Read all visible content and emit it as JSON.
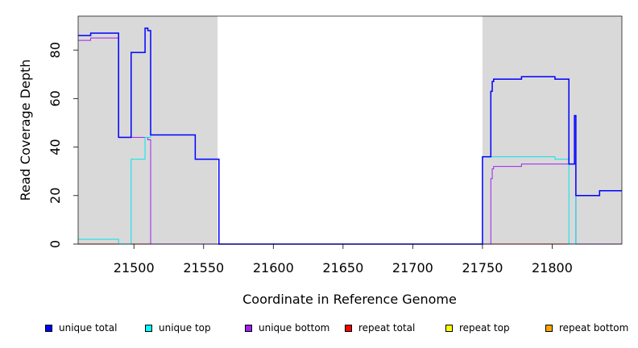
{
  "chart_data": {
    "type": "line",
    "title": "",
    "xlabel": "Coordinate in Reference Genome",
    "ylabel": "Read Coverage Depth",
    "xlim": [
      21460,
      21850
    ],
    "ylim": [
      0,
      94
    ],
    "xticks": [
      21500,
      21550,
      21600,
      21650,
      21700,
      21750,
      21800
    ],
    "yticks": [
      0,
      20,
      40,
      60,
      80
    ],
    "shaded_regions": [
      [
        21460,
        21560
      ],
      [
        21750,
        21850
      ]
    ],
    "shade_color": "#d9d9d9",
    "grid": false,
    "legend_position": "bottom",
    "series": [
      {
        "name": "unique total",
        "color": "#0000ff",
        "points": [
          [
            21460,
            86
          ],
          [
            21469,
            86
          ],
          [
            21469,
            87
          ],
          [
            21489,
            87
          ],
          [
            21489,
            44
          ],
          [
            21498,
            44
          ],
          [
            21498,
            79
          ],
          [
            21508,
            79
          ],
          [
            21508,
            89
          ],
          [
            21510,
            89
          ],
          [
            21510,
            88
          ],
          [
            21512,
            88
          ],
          [
            21512,
            45
          ],
          [
            21544,
            45
          ],
          [
            21544,
            35
          ],
          [
            21561,
            35
          ],
          [
            21561,
            0
          ],
          [
            21750,
            0
          ],
          [
            21750,
            36
          ],
          [
            21756,
            36
          ],
          [
            21756,
            63
          ],
          [
            21757,
            63
          ],
          [
            21757,
            67
          ],
          [
            21758,
            67
          ],
          [
            21758,
            68
          ],
          [
            21778,
            68
          ],
          [
            21778,
            69
          ],
          [
            21802,
            69
          ],
          [
            21802,
            68
          ],
          [
            21812,
            68
          ],
          [
            21812,
            33
          ],
          [
            21816,
            33
          ],
          [
            21816,
            53
          ],
          [
            21817,
            53
          ],
          [
            21817,
            20
          ],
          [
            21834,
            20
          ],
          [
            21834,
            22
          ],
          [
            21850,
            22
          ]
        ]
      },
      {
        "name": "unique top",
        "color": "#00e5ee",
        "points": [
          [
            21460,
            2
          ],
          [
            21489,
            2
          ],
          [
            21489,
            0
          ],
          [
            21498,
            0
          ],
          [
            21498,
            35
          ],
          [
            21508,
            35
          ],
          [
            21508,
            44
          ],
          [
            21512,
            44
          ],
          [
            21512,
            45
          ],
          [
            21544,
            45
          ],
          [
            21544,
            35
          ],
          [
            21561,
            35
          ],
          [
            21561,
            0
          ],
          [
            21750,
            0
          ],
          [
            21750,
            36
          ],
          [
            21802,
            36
          ],
          [
            21802,
            35
          ],
          [
            21812,
            35
          ],
          [
            21812,
            0
          ],
          [
            21817,
            0
          ],
          [
            21817,
            20
          ],
          [
            21834,
            20
          ],
          [
            21834,
            22
          ],
          [
            21850,
            22
          ]
        ]
      },
      {
        "name": "unique bottom",
        "color": "#a020f0",
        "points": [
          [
            21460,
            84
          ],
          [
            21469,
            84
          ],
          [
            21469,
            85
          ],
          [
            21489,
            85
          ],
          [
            21489,
            44
          ],
          [
            21510,
            44
          ],
          [
            21510,
            43
          ],
          [
            21512,
            43
          ],
          [
            21512,
            0
          ],
          [
            21756,
            0
          ],
          [
            21756,
            27
          ],
          [
            21757,
            27
          ],
          [
            21757,
            31
          ],
          [
            21758,
            31
          ],
          [
            21758,
            32
          ],
          [
            21778,
            32
          ],
          [
            21778,
            33
          ],
          [
            21812,
            33
          ],
          [
            21812,
            33
          ],
          [
            21817,
            33
          ],
          [
            21817,
            0
          ],
          [
            21850,
            0
          ]
        ]
      },
      {
        "name": "repeat total",
        "color": "#ff0000",
        "points": [
          [
            21460,
            0
          ],
          [
            21850,
            0
          ]
        ]
      },
      {
        "name": "repeat top",
        "color": "#ffff00",
        "points": [
          [
            21460,
            0
          ],
          [
            21850,
            0
          ]
        ]
      },
      {
        "name": "repeat bottom",
        "color": "#ffa500",
        "points": [
          [
            21460,
            0
          ],
          [
            21850,
            0
          ]
        ]
      }
    ]
  },
  "legend": [
    {
      "label": "unique total",
      "color": "#0000ff"
    },
    {
      "label": "unique top",
      "color": "#00ffff"
    },
    {
      "label": "unique bottom",
      "color": "#a020f0"
    },
    {
      "label": "repeat total",
      "color": "#ff0000"
    },
    {
      "label": "repeat top",
      "color": "#ffff00"
    },
    {
      "label": "repeat bottom",
      "color": "#ffa500"
    }
  ]
}
